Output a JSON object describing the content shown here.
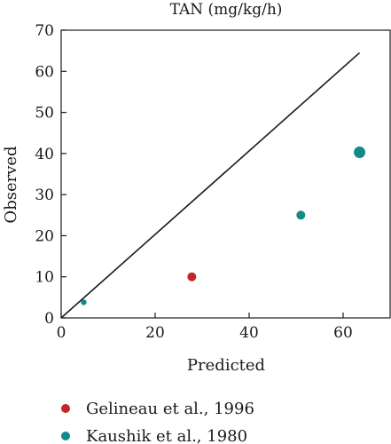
{
  "chart_data": {
    "type": "scatter",
    "title": "TAN (mg/kg/h)",
    "xlabel": "Predicted",
    "ylabel": "Observed",
    "xlim": [
      0,
      70
    ],
    "ylim": [
      0,
      70
    ],
    "xticks": [
      "0",
      "20",
      "40",
      "60"
    ],
    "xtick_values": [
      0,
      20,
      40,
      60
    ],
    "yticks": [
      "0",
      "10",
      "20",
      "30",
      "40",
      "50",
      "60",
      "70"
    ],
    "ytick_values": [
      0,
      10,
      20,
      30,
      40,
      50,
      60,
      70
    ],
    "grid": false,
    "legend_position": "bottom",
    "reference_line": {
      "x": [
        0,
        63.5
      ],
      "y": [
        0,
        64.5
      ]
    },
    "series": [
      {
        "name": "Gelineau et al., 1996",
        "color": "#c1272d",
        "points": [
          {
            "x": 27.8,
            "y": 10,
            "size": "medium"
          }
        ]
      },
      {
        "name": "Kaushik et al., 1980",
        "color": "#138a8a",
        "points": [
          {
            "x": 4.8,
            "y": 3.8,
            "size": "small"
          },
          {
            "x": 51,
            "y": 25,
            "size": "medium"
          },
          {
            "x": 63.5,
            "y": 40.3,
            "size": "large"
          }
        ]
      }
    ]
  }
}
